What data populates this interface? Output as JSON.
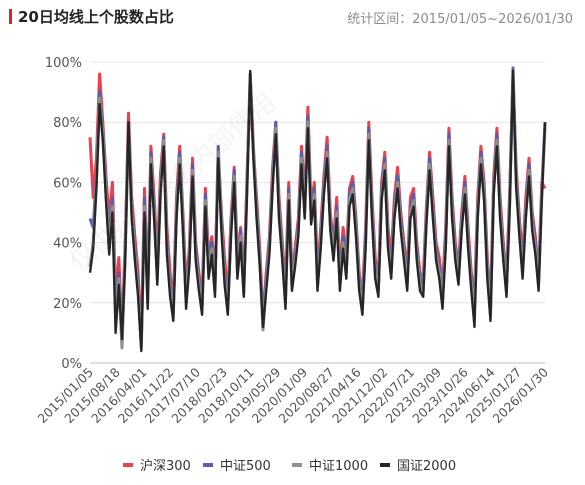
{
  "header": {
    "title": "20日均线上个股数占比",
    "period_label": "统计区间：2015/01/05~2026/01/30"
  },
  "watermark": "仅供好买基金内部使用",
  "colors": {
    "accent": "#d7262f",
    "hs300": "#e8424f",
    "zz500": "#5b5ea6",
    "zz1000": "#8f8f8f",
    "gz2000": "#262626",
    "grid": "#e4e4e4",
    "axis_text": "#555555"
  },
  "chart_data": {
    "type": "line",
    "title": "20日均线上个股数占比",
    "xlabel": "",
    "ylabel": "",
    "ylim": [
      0,
      100
    ],
    "y_ticks": [
      "0%",
      "20%",
      "40%",
      "60%",
      "80%",
      "100%"
    ],
    "x_range": [
      "2015/01/05",
      "2026/01/30"
    ],
    "x_tick_labels": [
      "2015/01/05",
      "2015/08/18",
      "2016/04/01",
      "2016/11/22",
      "2017/07/10",
      "2018/02/23",
      "2018/10/11",
      "2019/05/29",
      "2020/01/09",
      "2020/08/27",
      "2021/04/16",
      "2021/12/02",
      "2022/07/21",
      "2023/03/09",
      "2023/10/26",
      "2024/06/14",
      "2025/01/27",
      "2026/01/30"
    ],
    "grid": true,
    "legend_position": "bottom",
    "series": [
      {
        "name": "沪深300",
        "color_key": "hs300",
        "values": [
          75,
          55,
          68,
          96,
          80,
          62,
          48,
          60,
          22,
          35,
          10,
          40,
          83,
          55,
          42,
          30,
          8,
          58,
          25,
          72,
          55,
          35,
          63,
          76,
          45,
          30,
          20,
          55,
          72,
          50,
          25,
          38,
          68,
          40,
          30,
          22,
          58,
          35,
          42,
          28,
          70,
          50,
          35,
          22,
          48,
          65,
          35,
          45,
          28,
          62,
          92,
          70,
          55,
          38,
          15,
          30,
          42,
          65,
          80,
          55,
          40,
          25,
          60,
          30,
          38,
          48,
          72,
          55,
          85,
          52,
          60,
          30,
          45,
          62,
          75,
          50,
          40,
          55,
          30,
          45,
          35,
          58,
          62,
          48,
          30,
          22,
          45,
          80,
          55,
          35,
          28,
          60,
          70,
          45,
          35,
          55,
          65,
          50,
          40,
          30,
          55,
          58,
          40,
          30,
          28,
          52,
          70,
          55,
          40,
          35,
          25,
          45,
          78,
          55,
          40,
          32,
          50,
          62,
          45,
          30,
          22,
          55,
          72,
          60,
          35,
          20,
          62,
          78,
          55,
          40,
          28,
          58,
          95,
          65,
          48,
          35,
          55,
          68,
          50,
          42,
          30,
          60,
          58
        ]
      },
      {
        "name": "中证500",
        "color_key": "zz500",
        "values": [
          48,
          45,
          62,
          90,
          78,
          58,
          40,
          55,
          20,
          30,
          6,
          38,
          80,
          52,
          38,
          26,
          6,
          55,
          22,
          70,
          52,
          30,
          60,
          75,
          40,
          26,
          18,
          52,
          70,
          48,
          22,
          36,
          66,
          38,
          28,
          20,
          56,
          32,
          40,
          26,
          72,
          48,
          30,
          20,
          46,
          64,
          32,
          44,
          25,
          60,
          96,
          72,
          52,
          36,
          12,
          28,
          40,
          62,
          80,
          52,
          38,
          22,
          58,
          28,
          36,
          46,
          70,
          52,
          82,
          50,
          58,
          28,
          42,
          60,
          72,
          48,
          38,
          52,
          28,
          42,
          32,
          56,
          60,
          46,
          28,
          20,
          42,
          78,
          52,
          32,
          26,
          58,
          68,
          42,
          32,
          52,
          62,
          48,
          38,
          28,
          52,
          56,
          38,
          28,
          26,
          50,
          68,
          52,
          38,
          32,
          22,
          42,
          76,
          52,
          38,
          30,
          48,
          60,
          42,
          28,
          20,
          52,
          70,
          58,
          32,
          18,
          60,
          76,
          52,
          38,
          26,
          56,
          98,
          62,
          46,
          32,
          52,
          66,
          48,
          40,
          28,
          58,
          80
        ]
      },
      {
        "name": "中证1000",
        "color_key": "zz1000",
        "values": [
          32,
          40,
          60,
          88,
          76,
          56,
          38,
          52,
          18,
          28,
          5,
          36,
          78,
          50,
          36,
          24,
          5,
          52,
          20,
          68,
          50,
          28,
          58,
          74,
          38,
          24,
          16,
          50,
          68,
          46,
          20,
          34,
          64,
          36,
          26,
          18,
          54,
          30,
          38,
          24,
          70,
          46,
          28,
          18,
          44,
          62,
          30,
          42,
          23,
          58,
          96,
          70,
          50,
          34,
          11,
          26,
          38,
          60,
          78,
          50,
          36,
          20,
          56,
          26,
          34,
          44,
          68,
          50,
          80,
          48,
          56,
          26,
          40,
          58,
          70,
          46,
          36,
          50,
          26,
          40,
          30,
          54,
          58,
          44,
          26,
          18,
          40,
          76,
          50,
          30,
          24,
          56,
          66,
          40,
          30,
          50,
          60,
          46,
          36,
          26,
          50,
          54,
          36,
          26,
          24,
          48,
          66,
          50,
          36,
          30,
          20,
          40,
          74,
          50,
          36,
          28,
          46,
          58,
          40,
          26,
          18,
          50,
          68,
          56,
          30,
          16,
          58,
          74,
          50,
          36,
          24,
          54,
          96,
          60,
          44,
          30,
          50,
          64,
          46,
          38,
          26,
          56,
          78
        ]
      },
      {
        "name": "国证2000",
        "color_key": "gz2000",
        "values": [
          30,
          38,
          58,
          86,
          74,
          54,
          36,
          50,
          10,
          26,
          8,
          34,
          80,
          48,
          34,
          22,
          4,
          50,
          18,
          66,
          48,
          26,
          56,
          72,
          36,
          22,
          14,
          48,
          66,
          44,
          18,
          32,
          62,
          34,
          24,
          16,
          52,
          28,
          36,
          22,
          68,
          44,
          26,
          16,
          42,
          60,
          28,
          40,
          22,
          56,
          97,
          68,
          48,
          32,
          12,
          24,
          36,
          58,
          76,
          48,
          34,
          18,
          54,
          24,
          32,
          42,
          66,
          48,
          78,
          46,
          54,
          24,
          38,
          56,
          68,
          44,
          34,
          48,
          24,
          38,
          28,
          52,
          56,
          42,
          24,
          16,
          38,
          74,
          48,
          28,
          22,
          54,
          64,
          38,
          28,
          48,
          58,
          44,
          34,
          24,
          48,
          52,
          34,
          24,
          22,
          46,
          64,
          48,
          34,
          28,
          18,
          38,
          72,
          48,
          34,
          26,
          44,
          56,
          38,
          24,
          12,
          48,
          66,
          54,
          28,
          14,
          56,
          72,
          48,
          34,
          22,
          52,
          97,
          58,
          42,
          28,
          48,
          62,
          44,
          36,
          24,
          54,
          80
        ]
      }
    ]
  }
}
